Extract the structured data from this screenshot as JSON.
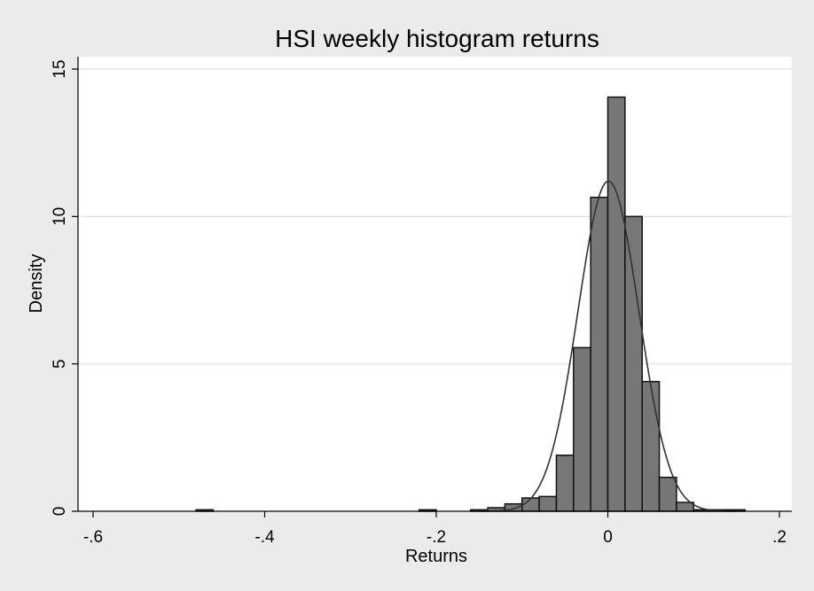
{
  "chart_data": {
    "type": "bar",
    "subtype": "histogram",
    "title": "HSI weekly histogram returns",
    "xlabel": "Returns",
    "ylabel": "Density",
    "xlim": [
      -0.62,
      0.22
    ],
    "ylim": [
      0,
      15.2
    ],
    "x_ticks": [
      -0.6,
      -0.4,
      -0.2,
      0,
      0.2
    ],
    "x_tick_labels": [
      "-.6",
      "-.4",
      "-.2",
      "0",
      ".2"
    ],
    "y_ticks": [
      0,
      5,
      10,
      15
    ],
    "y_tick_labels": [
      "0",
      "5",
      "10",
      "15"
    ],
    "grid": true,
    "bin_width": 0.02,
    "bins": [
      {
        "x0": -0.48,
        "x1": -0.46,
        "density": 0.05
      },
      {
        "x0": -0.22,
        "x1": -0.2,
        "density": 0.05
      },
      {
        "x0": -0.16,
        "x1": -0.14,
        "density": 0.05
      },
      {
        "x0": -0.14,
        "x1": -0.12,
        "density": 0.12
      },
      {
        "x0": -0.12,
        "x1": -0.1,
        "density": 0.25
      },
      {
        "x0": -0.1,
        "x1": -0.08,
        "density": 0.45
      },
      {
        "x0": -0.08,
        "x1": -0.06,
        "density": 0.5
      },
      {
        "x0": -0.06,
        "x1": -0.04,
        "density": 1.9
      },
      {
        "x0": -0.04,
        "x1": -0.02,
        "density": 5.55
      },
      {
        "x0": -0.02,
        "x1": 0.0,
        "density": 10.65
      },
      {
        "x0": 0.0,
        "x1": 0.02,
        "density": 14.05
      },
      {
        "x0": 0.02,
        "x1": 0.04,
        "density": 10.0
      },
      {
        "x0": 0.04,
        "x1": 0.06,
        "density": 4.4
      },
      {
        "x0": 0.06,
        "x1": 0.08,
        "density": 1.15
      },
      {
        "x0": 0.08,
        "x1": 0.1,
        "density": 0.3
      },
      {
        "x0": 0.1,
        "x1": 0.12,
        "density": 0.05
      },
      {
        "x0": 0.12,
        "x1": 0.14,
        "density": 0.05
      },
      {
        "x0": 0.14,
        "x1": 0.16,
        "density": 0.05
      }
    ],
    "normal_curve": {
      "mean": 0.0007,
      "sd": 0.0355,
      "peak": 11.2
    }
  }
}
